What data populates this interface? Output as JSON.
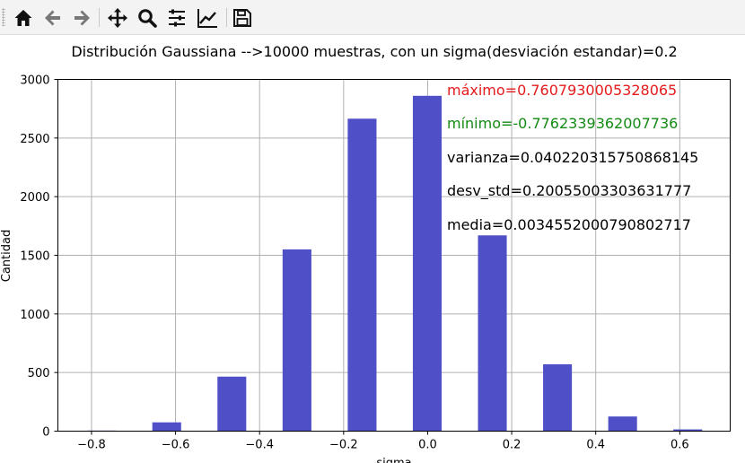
{
  "toolbar": {
    "buttons": [
      {
        "name": "home-button",
        "icon": "home-icon"
      },
      {
        "name": "back-button",
        "icon": "arrow-left-icon"
      },
      {
        "name": "forward-button",
        "icon": "arrow-right-icon"
      },
      {
        "name": "pan-button",
        "icon": "move-icon"
      },
      {
        "name": "zoom-button",
        "icon": "magnifier-icon"
      },
      {
        "name": "configure-subplots-button",
        "icon": "sliders-icon"
      },
      {
        "name": "edit-axis-button",
        "icon": "line-chart-icon"
      },
      {
        "name": "save-button",
        "icon": "floppy-disk-icon"
      }
    ]
  },
  "chart_data": {
    "type": "bar",
    "title": "Distribución Gaussiana -->10000 muestras, con un sigma(desviación estandar)=0.2",
    "xlabel": "sigma",
    "ylabel": "Cantidad",
    "xlim": [
      -0.88,
      0.72
    ],
    "ylim": [
      0,
      3000
    ],
    "xticks": [
      "−0.8",
      "−0.6",
      "−0.4",
      "−0.2",
      "0.0",
      "0.2",
      "0.4",
      "0.6"
    ],
    "xtick_values": [
      -0.8,
      -0.6,
      -0.4,
      -0.2,
      0.0,
      0.2,
      0.4,
      0.6
    ],
    "yticks": [
      "0",
      "500",
      "1000",
      "1500",
      "2000",
      "2500",
      "3000"
    ],
    "ytick_values": [
      0,
      500,
      1000,
      1500,
      2000,
      2500,
      3000
    ],
    "grid": true,
    "bar_color": "#4f4fc7",
    "bar_width": 0.0685,
    "bins": [
      {
        "x": -0.776,
        "value": 5
      },
      {
        "x": -0.621,
        "value": 75
      },
      {
        "x": -0.466,
        "value": 465
      },
      {
        "x": -0.311,
        "value": 1550
      },
      {
        "x": -0.156,
        "value": 2665
      },
      {
        "x": -0.001,
        "value": 2860
      },
      {
        "x": 0.154,
        "value": 1670
      },
      {
        "x": 0.309,
        "value": 570
      },
      {
        "x": 0.464,
        "value": 125
      },
      {
        "x": 0.619,
        "value": 15
      }
    ],
    "annotations": [
      {
        "text": "máximo=0.7607930005328065",
        "color": "#e41a1c"
      },
      {
        "text": "mínimo=-0.7762339362007736",
        "color": "#138a13"
      },
      {
        "text": "varianza=0.040220315750868145",
        "color": "#000000"
      },
      {
        "text": "desv_std=0.20055003303631777",
        "color": "#000000"
      },
      {
        "text": "media=0.0034552000790802717",
        "color": "#000000"
      }
    ]
  }
}
